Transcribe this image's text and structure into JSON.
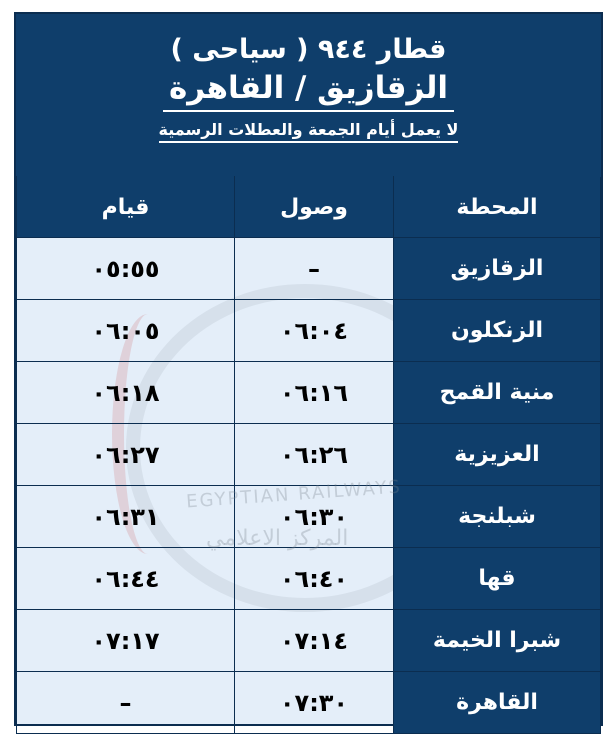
{
  "header": {
    "title": "قطار ٩٤٤ ( سياحى )",
    "route": "الزقازيق / القاهرة",
    "note": "لا يعمل أيام الجمعة والعطلات الرسمية"
  },
  "columns": {
    "station": "المحطة",
    "arrival": "وصول",
    "departure": "قيام"
  },
  "rows": [
    {
      "station": "الزقازيق",
      "arrival": "–",
      "departure": "٠٥:٥٥"
    },
    {
      "station": "الزنكلون",
      "arrival": "٠٦:٠٤",
      "departure": "٠٦:٠٥"
    },
    {
      "station": "منية القمح",
      "arrival": "٠٦:١٦",
      "departure": "٠٦:١٨"
    },
    {
      "station": "العزيزية",
      "arrival": "٠٦:٢٦",
      "departure": "٠٦:٢٧"
    },
    {
      "station": "شبلنجة",
      "arrival": "٠٦:٣٠",
      "departure": "٠٦:٣١"
    },
    {
      "station": "قها",
      "arrival": "٠٦:٤٠",
      "departure": "٠٦:٤٤"
    },
    {
      "station": "شبرا الخيمة",
      "arrival": "٠٧:١٤",
      "departure": "٠٧:١٧"
    },
    {
      "station": "القاهرة",
      "arrival": "٠٧:٣٠",
      "departure": "–"
    }
  ],
  "watermark": {
    "text_en": "EGYPTIAN RAILWAYS",
    "text_ar": "المركز الاعلامي"
  },
  "colors": {
    "header_bg": "#0f3e6b",
    "cell_bg": "#e4eef9"
  }
}
